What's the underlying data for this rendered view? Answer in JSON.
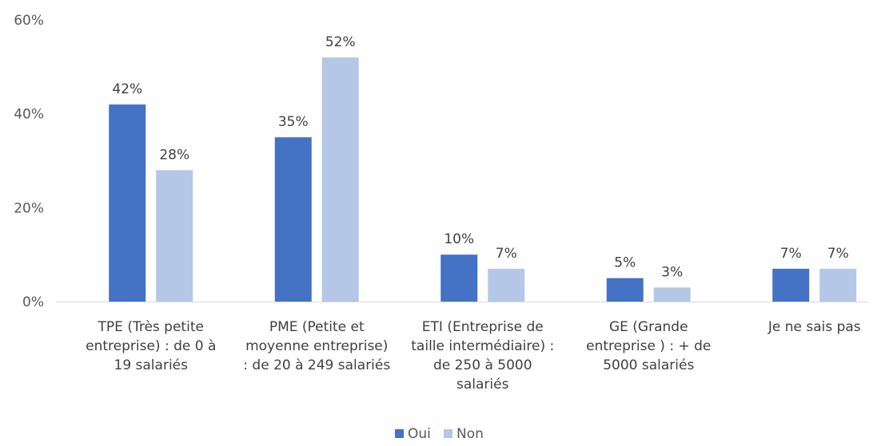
{
  "chart_data": {
    "type": "bar",
    "categories": [
      [
        "TPE (Très petite",
        "entreprise) : de 0 à",
        "19 salariés"
      ],
      [
        "PME (Petite et",
        "moyenne entreprise)",
        ": de 20 à 249 salariés"
      ],
      [
        "ETI (Entreprise de",
        "taille intermédiaire) :",
        "de 250 à 5000",
        "salariés"
      ],
      [
        "GE (Grande",
        "entreprise ) : + de",
        "5000 salariés"
      ],
      [
        "Je ne sais pas"
      ]
    ],
    "series": [
      {
        "name": "Oui",
        "color": "#4472C4",
        "values": [
          42,
          35,
          10,
          5,
          7
        ],
        "labels": [
          "42%",
          "35%",
          "10%",
          "5%",
          "7%"
        ]
      },
      {
        "name": "Non",
        "color": "#B4C7E7",
        "values": [
          28,
          52,
          7,
          3,
          7
        ],
        "labels": [
          "28%",
          "52%",
          "7%",
          "3%",
          "7%"
        ]
      }
    ],
    "ylim": [
      0,
      60
    ],
    "yticks": [
      {
        "value": 0,
        "label": "0%"
      },
      {
        "value": 20,
        "label": "20%"
      },
      {
        "value": 40,
        "label": "40%"
      },
      {
        "value": 60,
        "label": "60%"
      }
    ],
    "gridlines": false,
    "legend_position": "bottom",
    "title": "",
    "xlabel": "",
    "ylabel": ""
  }
}
